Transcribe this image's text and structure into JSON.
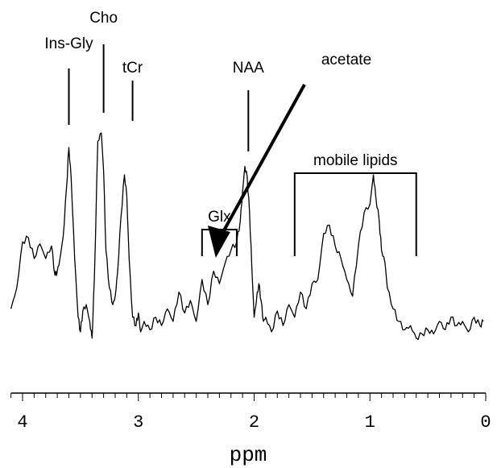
{
  "chart_data": {
    "type": "line",
    "title": "",
    "xlabel": "ppm",
    "ylabel": "",
    "x_reversed": true,
    "xlim": [
      4.1,
      0
    ],
    "ylim": [
      0,
      1
    ],
    "x_ticks": [
      {
        "value": 4,
        "label": "4"
      },
      {
        "value": 3,
        "label": "3"
      },
      {
        "value": 2,
        "label": "2"
      },
      {
        "value": 1,
        "label": "1"
      },
      {
        "value": 0,
        "label": "0"
      }
    ],
    "series": [
      {
        "name": "",
        "color": "#000000",
        "x": [
          4.1,
          4.05,
          4.0,
          3.95,
          3.9,
          3.85,
          3.8,
          3.75,
          3.72,
          3.7,
          3.68,
          3.65,
          3.62,
          3.6,
          3.58,
          3.55,
          3.52,
          3.5,
          3.48,
          3.45,
          3.42,
          3.4,
          3.38,
          3.35,
          3.32,
          3.3,
          3.28,
          3.25,
          3.22,
          3.2,
          3.18,
          3.15,
          3.12,
          3.1,
          3.08,
          3.05,
          3.02,
          3.0,
          2.98,
          2.95,
          2.9,
          2.85,
          2.8,
          2.75,
          2.7,
          2.65,
          2.6,
          2.55,
          2.5,
          2.45,
          2.4,
          2.35,
          2.3,
          2.25,
          2.2,
          2.15,
          2.12,
          2.1,
          2.08,
          2.06,
          2.04,
          2.02,
          2.0,
          1.98,
          1.96,
          1.94,
          1.92,
          1.9,
          1.85,
          1.8,
          1.75,
          1.7,
          1.65,
          1.6,
          1.55,
          1.5,
          1.45,
          1.4,
          1.35,
          1.3,
          1.25,
          1.2,
          1.15,
          1.1,
          1.05,
          1.0,
          0.97,
          0.95,
          0.92,
          0.9,
          0.87,
          0.85,
          0.8,
          0.75,
          0.7,
          0.65,
          0.6,
          0.55,
          0.5,
          0.45,
          0.4,
          0.35,
          0.3,
          0.25,
          0.2,
          0.15,
          0.1,
          0.05,
          0.02
        ],
        "y": [
          0.16,
          0.26,
          0.48,
          0.5,
          0.4,
          0.47,
          0.4,
          0.46,
          0.32,
          0.34,
          0.39,
          0.5,
          0.74,
          0.93,
          0.78,
          0.4,
          0.12,
          0.05,
          0.15,
          0.18,
          0.1,
          0.02,
          0.3,
          0.96,
          1.0,
          0.82,
          0.44,
          0.26,
          0.18,
          0.22,
          0.33,
          0.6,
          0.8,
          0.7,
          0.4,
          0.12,
          0.08,
          0.14,
          0.05,
          0.1,
          0.06,
          0.12,
          0.08,
          0.16,
          0.1,
          0.24,
          0.14,
          0.2,
          0.1,
          0.3,
          0.18,
          0.34,
          0.28,
          0.38,
          0.44,
          0.48,
          0.58,
          0.72,
          0.84,
          0.79,
          0.62,
          0.36,
          0.12,
          0.2,
          0.28,
          0.2,
          0.1,
          0.12,
          0.05,
          0.15,
          0.08,
          0.18,
          0.12,
          0.24,
          0.16,
          0.28,
          0.3,
          0.52,
          0.56,
          0.46,
          0.4,
          0.3,
          0.22,
          0.46,
          0.62,
          0.66,
          0.8,
          0.7,
          0.58,
          0.44,
          0.38,
          0.26,
          0.16,
          0.1,
          0.06,
          0.08,
          0.02,
          0.04,
          0.06,
          0.04,
          0.1,
          0.06,
          0.12,
          0.08,
          0.1,
          0.05,
          0.12,
          0.08,
          0.1
        ]
      }
    ],
    "annotations": [
      {
        "text": "Ins-Gly",
        "ppm": 3.6,
        "kind": "line"
      },
      {
        "text": "Cho",
        "ppm": 3.3,
        "kind": "line"
      },
      {
        "text": "tCr",
        "ppm": 3.05,
        "kind": "line"
      },
      {
        "text": "NAA",
        "ppm": 2.05,
        "kind": "line"
      },
      {
        "text": "Glx",
        "ppm_from": 2.45,
        "ppm_to": 2.15,
        "kind": "bracket"
      },
      {
        "text": "mobile lipids",
        "ppm_from": 1.65,
        "ppm_to": 0.6,
        "kind": "bracket"
      },
      {
        "text": "acetate",
        "ppm": 1.9,
        "kind": "arrow"
      }
    ],
    "grid": false,
    "legend": "none"
  }
}
